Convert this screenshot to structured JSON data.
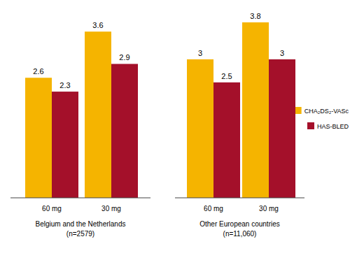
{
  "chart_data": [
    {
      "type": "bar",
      "xlabel": "Belgium and the Netherlands",
      "subtitle": "(n=2579)",
      "categories": [
        "60 mg",
        "30 mg"
      ],
      "series": [
        {
          "name": "CHA₂DS₂-VASc",
          "color": "#f5b400",
          "values": [
            2.6,
            3.6
          ]
        },
        {
          "name": "HAS-BLED",
          "color": "#a4102a",
          "values": [
            2.3,
            2.9
          ]
        }
      ],
      "ylim": [
        0,
        3.8
      ],
      "data_labels": true,
      "tick_labels": "x",
      "legend": "right"
    },
    {
      "type": "bar",
      "xlabel": "Other European countries",
      "subtitle": "(n=11,060)",
      "categories": [
        "60 mg",
        "30 mg"
      ],
      "series": [
        {
          "color": "#f5b400",
          "values": [
            3.0,
            3.8
          ]
        },
        {
          "color": "#a4102a",
          "values": [
            2.5,
            3.0
          ]
        }
      ],
      "ylim": [
        0,
        3.8
      ],
      "data_labels": true,
      "tick_labels": "x"
    }
  ]
}
